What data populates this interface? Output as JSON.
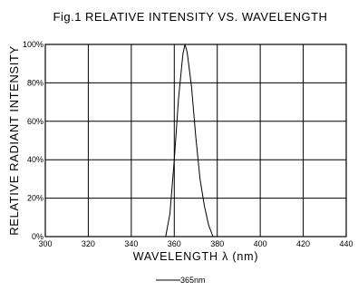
{
  "chart_data": {
    "type": "line",
    "title": "Fig.1 RELATIVE INTENSITY VS. WAVELENGTH",
    "xlabel": "WAVELENGTH λ (nm)",
    "ylabel": "RELATIVE RADIANT INTENSITY",
    "xlim": [
      300,
      440
    ],
    "ylim": [
      0,
      100
    ],
    "x_ticks": [
      "300",
      "320",
      "340",
      "360",
      "380",
      "400",
      "420",
      "440"
    ],
    "y_ticks": [
      "0%",
      "20%",
      "40%",
      "60%",
      "80%",
      "100%"
    ],
    "grid": true,
    "legend_position": "bottom-center",
    "series": [
      {
        "name": "365nm",
        "color": "#000000",
        "x": [
          356,
          358,
          360,
          362,
          364,
          365,
          366,
          368,
          370,
          372,
          374,
          376,
          378
        ],
        "y": [
          0,
          12,
          40,
          72,
          95,
          100,
          96,
          78,
          52,
          30,
          16,
          6,
          0
        ]
      }
    ]
  }
}
